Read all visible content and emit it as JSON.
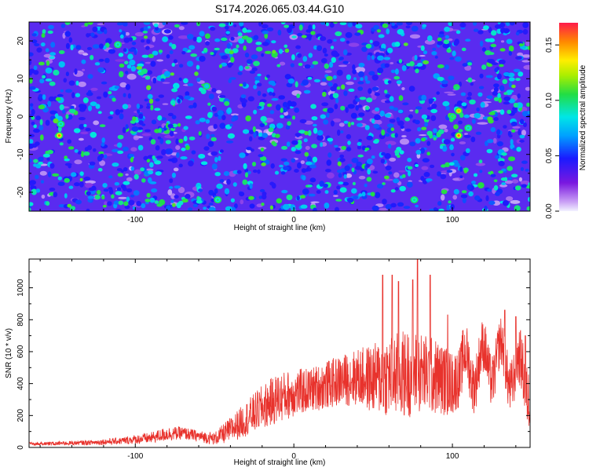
{
  "figure_title": "S174.2026.065.03.44.G10",
  "chart_data": [
    {
      "type": "heatmap",
      "title": "S174.2026.065.03.44.G10",
      "xlabel": "Height of straight line (km)",
      "ylabel": "Frequency (Hz)",
      "xlim": [
        -167,
        149
      ],
      "ylim": [
        -25,
        25
      ],
      "x_ticks": [
        -100,
        0,
        100
      ],
      "x_tick_labels": [
        "-100",
        "0",
        "100"
      ],
      "y_ticks": [
        -20,
        -10,
        0,
        10,
        20
      ],
      "y_tick_labels": [
        "-20",
        "-10",
        "0",
        "10",
        "20"
      ],
      "colorbar": {
        "label": "Normalized spectral amplitude",
        "range": [
          0,
          0.17
        ],
        "ticks": [
          0.0,
          0.05,
          0.1,
          0.15
        ],
        "tick_labels": [
          "0.00",
          "0.05",
          "0.10",
          "0.15"
        ]
      },
      "hotspots": [
        {
          "x": -148,
          "y": -5,
          "value": 0.16
        },
        {
          "x": -147,
          "y": -2,
          "value": 0.1
        },
        {
          "x": -111,
          "y": 19,
          "value": 0.1
        },
        {
          "x": -48,
          "y": -22,
          "value": 0.1
        },
        {
          "x": -55,
          "y": 8,
          "value": 0.09
        },
        {
          "x": 100,
          "y": 0,
          "value": 0.11
        },
        {
          "x": 104,
          "y": 1.5,
          "value": 0.15
        },
        {
          "x": 104,
          "y": -5,
          "value": 0.16
        },
        {
          "x": 110,
          "y": -3,
          "value": 0.1
        },
        {
          "x": 76,
          "y": -22,
          "value": 0.1
        }
      ]
    },
    {
      "type": "line",
      "xlabel": "Height of straight line (km)",
      "ylabel": "SNR (10 * v/v)",
      "xlim": [
        -167,
        149
      ],
      "ylim": [
        0,
        1180
      ],
      "x_ticks": [
        -100,
        0,
        100
      ],
      "x_tick_labels": [
        "-100",
        "0",
        "100"
      ],
      "y_ticks": [
        0,
        200,
        400,
        600,
        800,
        1000
      ],
      "y_tick_labels": [
        "0",
        "200",
        "400",
        "600",
        "800",
        "1000"
      ],
      "series": [
        {
          "name": "SNR",
          "color": "#e8322c",
          "x": [
            -167,
            -150,
            -130,
            -110,
            -90,
            -80,
            -70,
            -60,
            -50,
            -40,
            -30,
            -20,
            -10,
            0,
            10,
            20,
            30,
            40,
            50,
            60,
            70,
            80,
            90,
            100,
            110,
            120,
            130,
            140,
            149
          ],
          "baseline": [
            22,
            25,
            30,
            40,
            60,
            85,
            90,
            70,
            55,
            110,
            180,
            250,
            310,
            340,
            360,
            390,
            420,
            440,
            430,
            450,
            460,
            470,
            440,
            400,
            500,
            520,
            550,
            460,
            420
          ],
          "amplitude": [
            12,
            12,
            15,
            22,
            35,
            45,
            40,
            35,
            40,
            80,
            110,
            140,
            160,
            150,
            140,
            150,
            160,
            180,
            220,
            260,
            280,
            260,
            240,
            200,
            180,
            170,
            160,
            180,
            200
          ],
          "peaks": [
            {
              "x": 56,
              "y": 1080
            },
            {
              "x": 62,
              "y": 1080
            },
            {
              "x": 66,
              "y": 1040
            },
            {
              "x": 75,
              "y": 1050
            },
            {
              "x": 78,
              "y": 1180
            },
            {
              "x": 86,
              "y": 1080
            },
            {
              "x": 97,
              "y": 830
            },
            {
              "x": 133,
              "y": 860
            },
            {
              "x": 140,
              "y": 820
            },
            {
              "x": 146,
              "y": 700
            }
          ]
        }
      ]
    }
  ]
}
